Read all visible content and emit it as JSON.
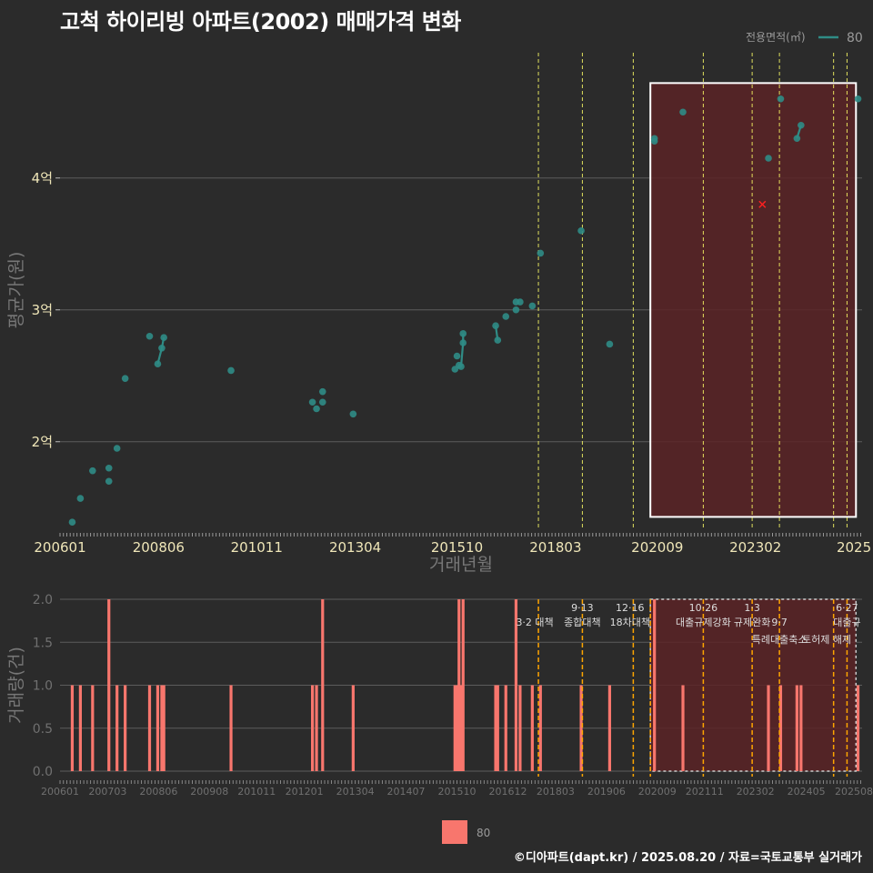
{
  "title": "고척 하이리빙 아파트(2002) 매매가격 변화",
  "copyright": "©디아파트(dapt.kr) / 2025.08.20 / 자료=국토교통부 실거래가",
  "colors": {
    "background": "#2b2b2b",
    "point": "#2f8c86",
    "bar": "#f8766d",
    "highlight": "#5a2326",
    "vline": "#ffff66",
    "vline2": "#ffa500",
    "marker": "#ff2020"
  },
  "chart_data": [
    {
      "type": "scatter",
      "title": "고척 하이리빙 아파트(2002) 매매가격 변화",
      "xlabel": "거래년월",
      "ylabel": "평균가(원)",
      "xlim": [
        2006.0,
        2025.7
      ],
      "ylim": [
        1.35,
        4.95
      ],
      "y_ticks": [
        {
          "v": 2,
          "label": "2억"
        },
        {
          "v": 3,
          "label": "3억"
        },
        {
          "v": 4,
          "label": "4억"
        }
      ],
      "x_ticks": [
        {
          "v": 2006.0,
          "label": "200601"
        },
        {
          "v": 2008.42,
          "label": "200806"
        },
        {
          "v": 2010.83,
          "label": "201011"
        },
        {
          "v": 2013.25,
          "label": "201304"
        },
        {
          "v": 2015.75,
          "label": "201510"
        },
        {
          "v": 2018.17,
          "label": "201803"
        },
        {
          "v": 2020.67,
          "label": "202009"
        },
        {
          "v": 2023.08,
          "label": "202302"
        },
        {
          "v": 2025.5,
          "label": "2025"
        }
      ],
      "legend": {
        "title": "전용면적(㎡)",
        "label": "80"
      },
      "series": [
        {
          "name": "80",
          "points": [
            [
              2006.3,
              1.39
            ],
            [
              2006.5,
              1.57
            ],
            [
              2006.8,
              1.78
            ],
            [
              2007.2,
              1.8
            ],
            [
              2007.2,
              1.7
            ],
            [
              2007.4,
              1.95
            ],
            [
              2007.6,
              2.48
            ],
            [
              2008.2,
              2.8
            ],
            [
              2008.4,
              2.59
            ],
            [
              2008.5,
              2.71
            ],
            [
              2008.55,
              2.79
            ],
            [
              2010.2,
              2.54
            ],
            [
              2012.2,
              2.3
            ],
            [
              2012.3,
              2.25
            ],
            [
              2012.45,
              2.3
            ],
            [
              2012.45,
              2.38
            ],
            [
              2013.2,
              2.21
            ],
            [
              2015.7,
              2.55
            ],
            [
              2015.75,
              2.65
            ],
            [
              2015.8,
              2.58
            ],
            [
              2015.85,
              2.57
            ],
            [
              2015.9,
              2.75
            ],
            [
              2015.9,
              2.82
            ],
            [
              2016.7,
              2.88
            ],
            [
              2016.75,
              2.77
            ],
            [
              2016.95,
              2.95
            ],
            [
              2017.2,
              3.0
            ],
            [
              2017.2,
              3.06
            ],
            [
              2017.3,
              3.06
            ],
            [
              2017.6,
              3.03
            ],
            [
              2017.8,
              3.43
            ],
            [
              2018.8,
              3.6
            ],
            [
              2019.5,
              2.74
            ],
            [
              2020.6,
              4.28
            ],
            [
              2020.6,
              4.3
            ],
            [
              2021.3,
              4.5
            ],
            [
              2023.4,
              4.15
            ],
            [
              2023.7,
              4.6
            ],
            [
              2024.1,
              4.3
            ],
            [
              2024.2,
              4.4
            ],
            [
              2025.6,
              4.6
            ]
          ]
        }
      ],
      "lines": [
        [
          [
            2008.4,
            2.59
          ],
          [
            2008.5,
            2.71
          ],
          [
            2008.55,
            2.79
          ]
        ],
        [
          [
            2015.85,
            2.57
          ],
          [
            2015.9,
            2.75
          ],
          [
            2015.9,
            2.82
          ]
        ],
        [
          [
            2016.7,
            2.88
          ],
          [
            2016.75,
            2.77
          ]
        ],
        [
          [
            2024.1,
            4.3
          ],
          [
            2024.2,
            4.4
          ]
        ]
      ],
      "marker_x": [
        2023.25,
        3.8
      ],
      "highlight_range": {
        "x": [
          2020.5,
          2025.55
        ],
        "y": [
          1.43,
          4.72
        ]
      },
      "vlines": [
        2017.75,
        2018.83,
        2020.08,
        2021.8,
        2023.0,
        2023.67,
        2025.0,
        2025.33
      ]
    },
    {
      "type": "bar",
      "ylabel": "거래량(건)",
      "xlim": [
        2006.0,
        2025.7
      ],
      "ylim": [
        0,
        2.0
      ],
      "y_ticks": [
        {
          "v": 0,
          "label": "0.0"
        },
        {
          "v": 0.5,
          "label": "0.5"
        },
        {
          "v": 1,
          "label": "1.0"
        },
        {
          "v": 1.5,
          "label": "1.5"
        },
        {
          "v": 2,
          "label": "2.0"
        }
      ],
      "x_ticks": [
        {
          "v": 2006.0,
          "label": "200601"
        },
        {
          "v": 2007.17,
          "label": "200703"
        },
        {
          "v": 2008.42,
          "label": "200806"
        },
        {
          "v": 2009.67,
          "label": "200908"
        },
        {
          "v": 2010.83,
          "label": "201011"
        },
        {
          "v": 2012.0,
          "label": "201201"
        },
        {
          "v": 2013.25,
          "label": "201304"
        },
        {
          "v": 2014.5,
          "label": "201407"
        },
        {
          "v": 2015.75,
          "label": "201510"
        },
        {
          "v": 2017.0,
          "label": "201612"
        },
        {
          "v": 2018.17,
          "label": "201803"
        },
        {
          "v": 2019.42,
          "label": "201906"
        },
        {
          "v": 2020.67,
          "label": "202009"
        },
        {
          "v": 2021.83,
          "label": "202111"
        },
        {
          "v": 2023.08,
          "label": "202302"
        },
        {
          "v": 2024.33,
          "label": "202405"
        },
        {
          "v": 2025.5,
          "label": "202508"
        }
      ],
      "legend": {
        "label": "80"
      },
      "bars": [
        [
          2006.3,
          1
        ],
        [
          2006.5,
          1
        ],
        [
          2006.8,
          1
        ],
        [
          2007.2,
          2
        ],
        [
          2007.4,
          1
        ],
        [
          2007.6,
          1
        ],
        [
          2008.2,
          1
        ],
        [
          2008.4,
          1
        ],
        [
          2008.5,
          1
        ],
        [
          2008.55,
          1
        ],
        [
          2010.2,
          1
        ],
        [
          2012.2,
          1
        ],
        [
          2012.3,
          1
        ],
        [
          2012.45,
          2
        ],
        [
          2013.2,
          1
        ],
        [
          2015.7,
          1
        ],
        [
          2015.75,
          1
        ],
        [
          2015.8,
          2
        ],
        [
          2015.85,
          1
        ],
        [
          2015.9,
          2
        ],
        [
          2016.7,
          1
        ],
        [
          2016.75,
          1
        ],
        [
          2016.95,
          1
        ],
        [
          2017.2,
          2
        ],
        [
          2017.3,
          1
        ],
        [
          2017.6,
          1
        ],
        [
          2017.8,
          1
        ],
        [
          2018.8,
          1
        ],
        [
          2019.5,
          1
        ],
        [
          2020.6,
          2
        ],
        [
          2021.3,
          1
        ],
        [
          2023.4,
          1
        ],
        [
          2023.7,
          1
        ],
        [
          2024.1,
          1
        ],
        [
          2024.2,
          1
        ],
        [
          2025.6,
          1
        ]
      ],
      "highlight_range": {
        "x": [
          2020.5,
          2025.55
        ],
        "y": [
          0,
          2.0
        ]
      },
      "vlines": [
        2017.75,
        2018.83,
        2020.08,
        2020.5,
        2021.8,
        2023.0,
        2023.67,
        2025.0,
        2025.33
      ],
      "annotations": [
        {
          "x": 2017.2,
          "row": 1,
          "text": "3·2 대책",
          "anchor": "start"
        },
        {
          "x": 2018.83,
          "row": 0,
          "text": "9·13",
          "anchor": "middle"
        },
        {
          "x": 2018.83,
          "row": 1,
          "text": "종합대책",
          "anchor": "middle"
        },
        {
          "x": 2020.0,
          "row": 0,
          "text": "12·16",
          "anchor": "middle"
        },
        {
          "x": 2020.0,
          "row": 1,
          "text": "18차대책",
          "anchor": "middle"
        },
        {
          "x": 2021.8,
          "row": 0,
          "text": "10·26",
          "anchor": "middle"
        },
        {
          "x": 2021.8,
          "row": 1,
          "text": "대출규제강화",
          "anchor": "middle"
        },
        {
          "x": 2023.0,
          "row": 0,
          "text": "1·3",
          "anchor": "middle"
        },
        {
          "x": 2023.0,
          "row": 1,
          "text": "규제완화",
          "anchor": "middle"
        },
        {
          "x": 2023.67,
          "row": 1,
          "text": "9·7",
          "anchor": "middle"
        },
        {
          "x": 2023.67,
          "row": 2,
          "text": "특례대출축소",
          "anchor": "middle"
        },
        {
          "x": 2024.83,
          "row": 2,
          "text": "토허제 해제",
          "anchor": "middle"
        },
        {
          "x": 2025.33,
          "row": 0,
          "text": "6·27",
          "anchor": "middle"
        },
        {
          "x": 2025.33,
          "row": 1,
          "text": "대출규",
          "anchor": "middle"
        }
      ]
    }
  ]
}
